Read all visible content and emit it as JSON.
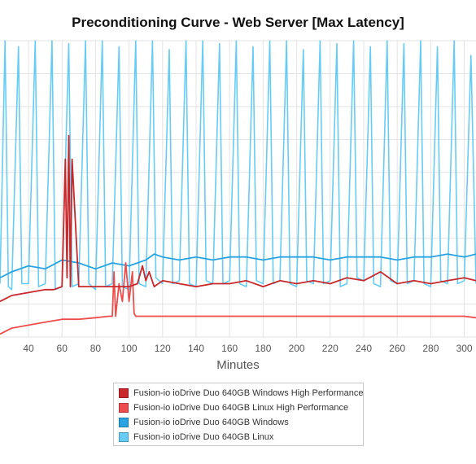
{
  "chart_data": {
    "type": "line",
    "title": "Preconditioning Curve - Web Server [Max Latency]",
    "xlabel": "Minutes",
    "ylabel": "",
    "xlim": [
      23,
      307
    ],
    "ylim": [
      0,
      100
    ],
    "x_ticks": [
      40,
      60,
      80,
      100,
      120,
      140,
      160,
      180,
      200,
      220,
      240,
      260,
      280,
      300
    ],
    "grid": true,
    "legend_position": "bottom-center",
    "series": [
      {
        "name": "Fusion-io ioDrive Duo 640GB Windows High Performance",
        "color": "#c8282b",
        "x": [
          23,
          30,
          40,
          50,
          55,
          60,
          62,
          63,
          64,
          65,
          66,
          70,
          80,
          90,
          100,
          105,
          108,
          110,
          112,
          115,
          120,
          130,
          140,
          150,
          160,
          170,
          180,
          190,
          200,
          210,
          220,
          230,
          240,
          250,
          260,
          270,
          280,
          290,
          300,
          307
        ],
        "y": [
          12,
          14,
          15,
          16,
          16,
          17,
          60,
          20,
          68,
          17,
          60,
          17,
          17,
          17,
          17,
          18,
          24,
          19,
          22,
          17,
          19,
          18,
          17,
          18,
          18,
          19,
          17,
          19,
          18,
          19,
          18,
          20,
          19,
          22,
          18,
          19,
          18,
          19,
          20,
          19
        ]
      },
      {
        "name": "Fusion-io ioDrive Duo 640GB Linux High Performance",
        "color": "#ee4d4d",
        "x": [
          23,
          30,
          40,
          50,
          60,
          70,
          80,
          88,
          90,
          91,
          92,
          94,
          96,
          98,
          100,
          102,
          103,
          104,
          106,
          110,
          120,
          130,
          140,
          150,
          160,
          170,
          180,
          190,
          200,
          210,
          220,
          230,
          240,
          250,
          260,
          270,
          280,
          290,
          300,
          307
        ],
        "y": [
          1,
          3,
          4,
          5,
          6,
          6,
          6.5,
          7,
          7,
          22,
          7,
          18,
          12,
          25,
          12,
          22,
          8,
          7,
          7,
          7,
          7,
          7,
          7,
          7,
          7,
          7,
          7,
          7,
          7,
          7,
          7,
          7,
          7,
          7,
          7,
          7,
          7,
          7,
          7,
          6.5
        ]
      },
      {
        "name": "Fusion-io ioDrive Duo 640GB Windows",
        "color": "#29a3e0",
        "x": [
          23,
          30,
          40,
          50,
          60,
          70,
          80,
          90,
          100,
          110,
          115,
          120,
          130,
          140,
          150,
          160,
          170,
          180,
          190,
          200,
          210,
          220,
          230,
          240,
          250,
          260,
          270,
          280,
          290,
          300,
          307
        ],
        "y": [
          20,
          22,
          24,
          23,
          26,
          25,
          23,
          25,
          24,
          26,
          28,
          27,
          26,
          27,
          26,
          27,
          27,
          26,
          27,
          27,
          27,
          26,
          27,
          27,
          27,
          26,
          27,
          27,
          28,
          27,
          28
        ]
      },
      {
        "name": "Fusion-io ioDrive Duo 640GB Linux",
        "color": "#66ccf5",
        "x": [
          23,
          26,
          28,
          30,
          34,
          36,
          40,
          44,
          46,
          50,
          54,
          56,
          60,
          64,
          66,
          70,
          74,
          76,
          80,
          84,
          86,
          90,
          94,
          96,
          100,
          104,
          106,
          110,
          114,
          116,
          120,
          124,
          126,
          130,
          134,
          136,
          140,
          144,
          146,
          150,
          154,
          156,
          160,
          164,
          166,
          170,
          174,
          176,
          180,
          184,
          186,
          190,
          194,
          196,
          200,
          204,
          206,
          210,
          214,
          216,
          220,
          224,
          226,
          230,
          234,
          236,
          240,
          244,
          246,
          250,
          254,
          256,
          260,
          264,
          266,
          270,
          274,
          276,
          280,
          284,
          286,
          290,
          294,
          296,
          300,
          304,
          307
        ],
        "y": [
          18,
          100,
          17,
          16,
          98,
          18,
          18,
          100,
          17,
          18,
          100,
          16,
          17,
          99,
          17,
          18,
          100,
          18,
          16,
          100,
          17,
          18,
          98,
          17,
          16,
          100,
          18,
          17,
          100,
          20,
          18,
          97,
          18,
          19,
          100,
          18,
          17,
          100,
          19,
          18,
          99,
          18,
          19,
          100,
          18,
          17,
          98,
          19,
          18,
          100,
          18,
          19,
          100,
          18,
          17,
          97,
          19,
          18,
          100,
          18,
          19,
          99,
          17,
          18,
          100,
          20,
          19,
          98,
          18,
          17,
          100,
          19,
          18,
          99,
          18,
          19,
          100,
          18,
          17,
          98,
          19,
          18,
          100,
          18,
          19,
          95,
          18
        ]
      }
    ]
  }
}
